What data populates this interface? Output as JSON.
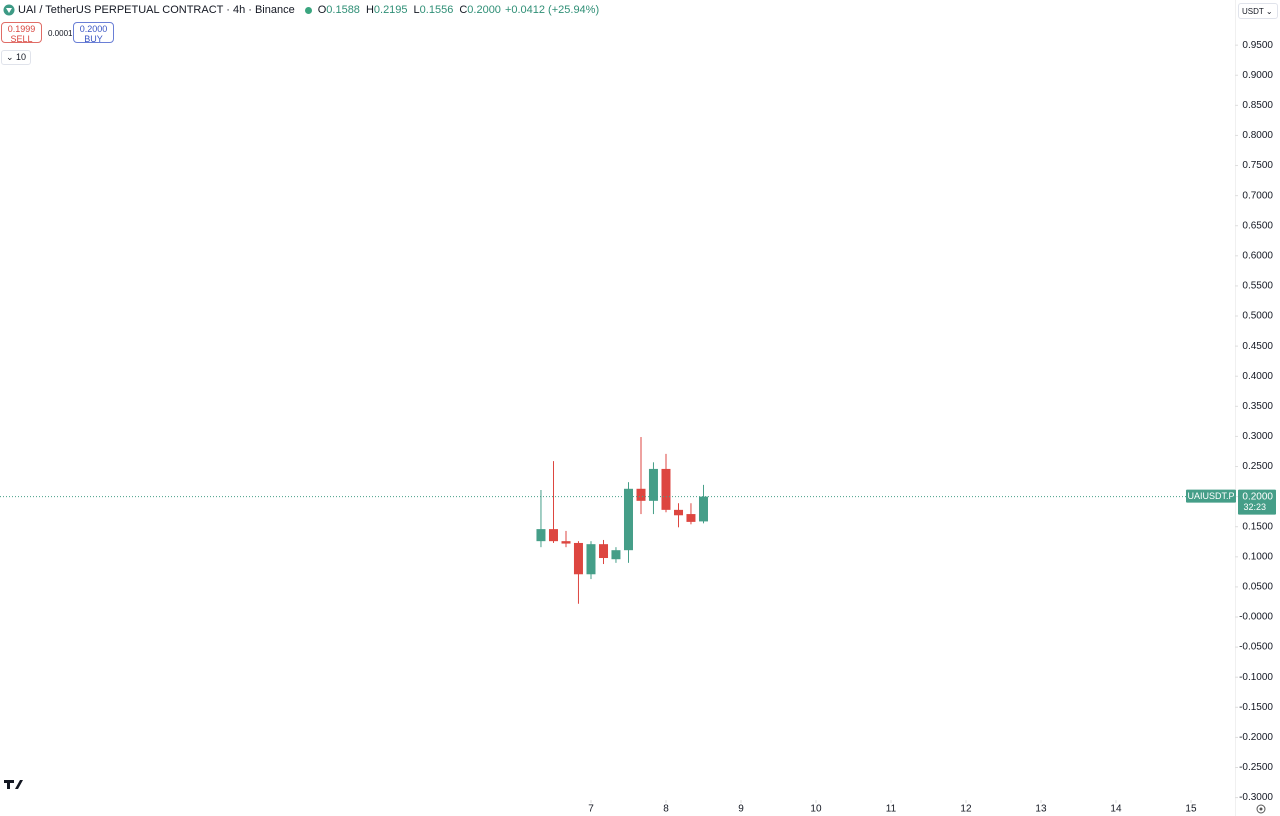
{
  "header": {
    "symbol": "UAI / TetherUS PERPETUAL CONTRACT · 4h · Binance",
    "ohlc": [
      {
        "key": "O",
        "value": "0.1588"
      },
      {
        "key": "H",
        "value": "0.2195"
      },
      {
        "key": "L",
        "value": "0.1556"
      },
      {
        "key": "C",
        "value": "0.2000"
      }
    ],
    "change": "+0.0412 (+25.94%)",
    "sell_price": "0.1999",
    "sell_label": "SELL",
    "spread": "0.0001",
    "buy_price": "0.2000",
    "buy_label": "BUY",
    "indicator_count": "10",
    "currency": "USDT"
  },
  "chart_data": {
    "type": "candlestick",
    "x": [
      6.333,
      6.5,
      6.667,
      6.833,
      7.0,
      7.167,
      7.333,
      7.5,
      7.667,
      7.833,
      8.0,
      8.167,
      8.333,
      8.5
    ],
    "open": [
      0.126,
      0.146,
      0.126,
      0.123,
      0.071,
      0.121,
      0.096,
      0.111,
      0.213,
      0.193,
      0.246,
      0.178,
      0.171,
      0.1588
    ],
    "high": [
      0.211,
      0.259,
      0.143,
      0.126,
      0.126,
      0.128,
      0.116,
      0.224,
      0.299,
      0.257,
      0.271,
      0.189,
      0.189,
      0.2195
    ],
    "low": [
      0.116,
      0.123,
      0.116,
      0.022,
      0.063,
      0.088,
      0.09,
      0.09,
      0.171,
      0.171,
      0.174,
      0.149,
      0.154,
      0.1556
    ],
    "close": [
      0.146,
      0.126,
      0.122,
      0.071,
      0.121,
      0.098,
      0.111,
      0.213,
      0.193,
      0.246,
      0.178,
      0.169,
      0.158,
      0.2
    ],
    "up_color": "#459e88",
    "down_color": "#dd4640",
    "xlim": [
      -0.88,
      15.587
    ],
    "xticks": [
      7,
      8,
      9,
      10,
      11,
      12,
      13,
      14,
      15
    ],
    "ylim": [
      -0.304,
      1.025
    ],
    "yticks": [
      {
        "value": 0.95,
        "label": "0.9500"
      },
      {
        "value": 0.9,
        "label": "0.9000"
      },
      {
        "value": 0.85,
        "label": "0.8500"
      },
      {
        "value": 0.8,
        "label": "0.8000"
      },
      {
        "value": 0.75,
        "label": "0.7500"
      },
      {
        "value": 0.7,
        "label": "0.7000"
      },
      {
        "value": 0.65,
        "label": "0.6500"
      },
      {
        "value": 0.6,
        "label": "0.6000"
      },
      {
        "value": 0.55,
        "label": "0.5500"
      },
      {
        "value": 0.5,
        "label": "0.5000"
      },
      {
        "value": 0.45,
        "label": "0.4500"
      },
      {
        "value": 0.4,
        "label": "0.4000"
      },
      {
        "value": 0.35,
        "label": "0.3500"
      },
      {
        "value": 0.3,
        "label": "0.3000"
      },
      {
        "value": 0.25,
        "label": "0.2500"
      },
      {
        "value": 0.2,
        "label": "0.2000"
      },
      {
        "value": 0.15,
        "label": "0.1500"
      },
      {
        "value": 0.1,
        "label": "0.1000"
      },
      {
        "value": 0.05,
        "label": "0.0500"
      },
      {
        "value": 0,
        "label": "-0.0000"
      },
      {
        "value": -0.05,
        "label": "-0.0500"
      },
      {
        "value": -0.1,
        "label": "-0.1000"
      },
      {
        "value": -0.15,
        "label": "-0.1500"
      },
      {
        "value": -0.2,
        "label": "-0.2000"
      },
      {
        "value": -0.25,
        "label": "-0.2500"
      },
      {
        "value": -0.3,
        "label": "-0.3000"
      }
    ],
    "symbol_label": "UAIUSDT.P",
    "last_price_label": "0.2000",
    "countdown": "32:23"
  }
}
